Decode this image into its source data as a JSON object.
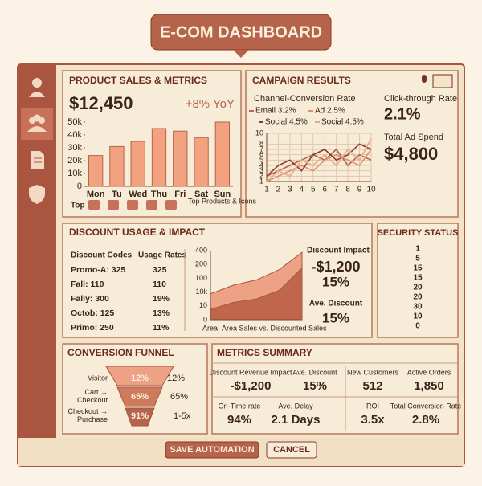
{
  "header": {
    "title": "E-COM DASHBOARD"
  },
  "product_sales": {
    "title": "PRODUCT SALES & METRICS",
    "total": "$12,450",
    "growth": "+8% YoY",
    "footer_left": "Top",
    "footer_right": "Top Products & Icons"
  },
  "campaign": {
    "title": "CAMPAIGN RESULTS",
    "ctr_label": "Click-through Rate",
    "ctr": "2.1%",
    "spend_label": "Total Ad Spend",
    "spend": "$4,800"
  },
  "discount": {
    "title": "DISCOUNT USAGE & IMPACT",
    "headers": [
      "Discount Codes",
      "Usage Rates"
    ],
    "rows": [
      [
        "Promo-A: 325",
        "325"
      ],
      [
        "Fall: 110",
        "110"
      ],
      [
        "Fally: 300",
        "19%"
      ],
      [
        "Octob: 125",
        "13%"
      ],
      [
        "Primo: 250",
        "11%"
      ]
    ],
    "impact_label": "Discount Impact",
    "impact": "-$1,200",
    "impact_pct": "15%",
    "avg_label": "Ave. Discount",
    "avg": "15%"
  },
  "security": {
    "title": "SECURITY STATUS",
    "values": [
      1,
      5,
      15,
      15,
      20,
      20,
      30,
      10,
      0
    ]
  },
  "funnel": {
    "title": "CONVERSION FUNNEL",
    "stages": [
      {
        "label": "Visitor",
        "inner": "12%",
        "outer": "12%"
      },
      {
        "label": "Cart → Checkout",
        "inner": "65%",
        "outer": "65%"
      },
      {
        "label": "Checkout → Purchase",
        "inner": "91%",
        "outer": "1-5x"
      }
    ]
  },
  "metrics": {
    "title": "METRICS SUMMARY",
    "items": [
      {
        "label": "Discount Revenue Impact",
        "value": "-$1,200"
      },
      {
        "label": "Ave. Discount",
        "value": "15%"
      },
      {
        "label": "New Customers",
        "value": "512"
      },
      {
        "label": "Active Orders",
        "value": "1,850"
      },
      {
        "label": "On-Time rate",
        "value": "94%"
      },
      {
        "label": "Ave. Delay",
        "value": "2.1 Days"
      },
      {
        "label": "ROI",
        "value": "3.5x"
      },
      {
        "label": "Total Conversion Rate",
        "value": "2.8%"
      }
    ]
  },
  "buttons": {
    "save": "SAVE AUTOMATION",
    "cancel": "CANCEL"
  },
  "chart_data": [
    {
      "type": "bar",
      "categories": [
        "Mon",
        "Tu",
        "Wed",
        "Thu",
        "Fri",
        "Sat",
        "Sun"
      ],
      "values": [
        24000,
        31000,
        35000,
        45000,
        43000,
        38000,
        50000
      ],
      "color": "#f2a27f",
      "ylim": [
        0,
        50000
      ],
      "yticks": [
        {
          "value": 0,
          "label": "0"
        },
        {
          "value": 10000,
          "label": "10k"
        },
        {
          "value": 20000,
          "label": "20k"
        },
        {
          "value": 30000,
          "label": "30k"
        },
        {
          "value": 40000,
          "label": "40k"
        },
        {
          "value": 50000,
          "label": "50k"
        }
      ]
    },
    {
      "type": "line",
      "title": "Channel-Conversion Rate",
      "x": [
        1,
        2,
        3,
        4,
        5,
        6,
        7,
        8,
        9,
        10
      ],
      "xlim": [
        1,
        10
      ],
      "xticks": [
        1,
        2,
        3,
        4,
        5,
        6,
        7,
        8,
        9,
        10
      ],
      "ylim": [
        1,
        10
      ],
      "yticks": [
        1,
        2,
        3,
        4,
        5,
        6,
        7,
        8,
        10
      ],
      "grid": true,
      "series": [
        {
          "name": "Email 3.2%",
          "color": "#b5634b",
          "values": [
            2,
            3,
            4,
            5,
            6,
            5,
            7,
            4,
            6,
            5
          ]
        },
        {
          "name": "Ad 2.5%",
          "color": "#dc916e",
          "values": [
            1,
            2,
            3,
            4,
            3,
            5,
            6,
            5,
            4,
            7
          ]
        },
        {
          "name": "Social 4.5%",
          "color": "#8a3a28",
          "values": [
            2,
            4,
            5,
            3,
            6,
            7,
            5,
            6,
            8,
            7
          ]
        },
        {
          "name": "Social 4.5%",
          "color": "#e6a886",
          "values": [
            1,
            3,
            2,
            5,
            4,
            6,
            4,
            7,
            5,
            9
          ]
        }
      ]
    },
    {
      "type": "area",
      "categories": [
        null,
        null,
        null,
        null,
        null
      ],
      "ylim": [
        0,
        400
      ],
      "y_labels": [
        "0",
        "10",
        "10k",
        "100",
        "200",
        "400"
      ],
      "x_labels": [
        "Area",
        "Area Sales vs. Discounted Sales"
      ],
      "series": [
        {
          "color": "#eda285",
          "values": [
            150,
            200,
            230,
            290,
            390
          ]
        },
        {
          "color": "#c0664b",
          "values": [
            60,
            100,
            120,
            170,
            300
          ]
        }
      ]
    }
  ]
}
